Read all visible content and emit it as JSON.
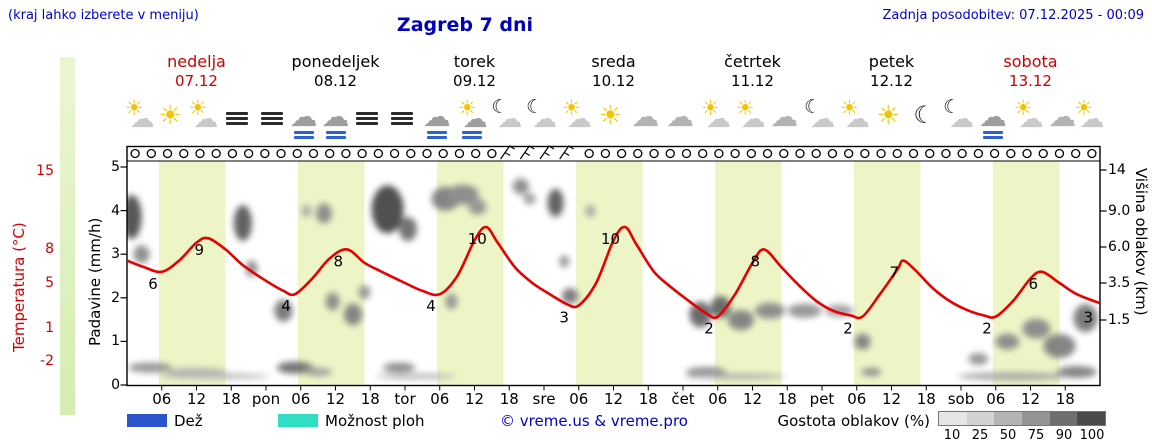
{
  "header": {
    "hint": "(kraj lahko izberete v meniju)",
    "title": "Zagreb 7 dni",
    "updated": "Zadnja posodobitev: 07.12.2025 - 00:09"
  },
  "days": [
    {
      "name": "nedelja",
      "date": "07.12",
      "red": true
    },
    {
      "name": "ponedeljek",
      "date": "08.12",
      "red": false
    },
    {
      "name": "torek",
      "date": "09.12",
      "red": false
    },
    {
      "name": "sreda",
      "date": "10.12",
      "red": false
    },
    {
      "name": "četrtek",
      "date": "11.12",
      "red": false
    },
    {
      "name": "petek",
      "date": "12.12",
      "red": false
    },
    {
      "name": "sobota",
      "date": "13.12",
      "red": true
    }
  ],
  "axes": {
    "temp_label": "Temperatura (°C)",
    "temp_ticks": [
      15,
      8,
      5,
      1,
      -2
    ],
    "precip_label": "Padavine (mm/h)",
    "precip_ticks": [
      5,
      4,
      3,
      2,
      1,
      0
    ],
    "cloud_label": "Višina oblakov (km)",
    "cloud_ticks": [
      "14",
      "9.0",
      "6.0",
      "3.5",
      "1.5"
    ],
    "x_hour_labels": [
      "06",
      "12",
      "18"
    ],
    "x_day_abbrevs": [
      "pon",
      "tor",
      "sre",
      "čet",
      "pet",
      "sob"
    ]
  },
  "legend": {
    "rain_label": "Dež",
    "showers_label": "Možnost ploh",
    "credit": "© vreme.us & vreme.pro",
    "cloud_density_label": "Gostota oblakov (%)",
    "cloud_scale_values": [
      "10",
      "25",
      "50",
      "75",
      "90",
      "100"
    ],
    "cloud_scale_grays": [
      "#e6e6e6",
      "#d2d2d2",
      "#b4b4b4",
      "#949494",
      "#6f6f6f",
      "#4a4a4a"
    ]
  },
  "colors": {
    "day_band": "#edf5c6",
    "curve": "#e60000",
    "rain_legend": "#2c55cc",
    "showers_legend": "#30dfc3",
    "temp_axis": "#d40000",
    "blue_text": "#0000cc"
  },
  "chart_data": {
    "type": "line",
    "location": "Zagreb",
    "x_unit": "ure od 07.12 00:00",
    "x_range_hours": [
      0,
      168
    ],
    "temp_axis_range_c": [
      -2,
      15
    ],
    "precip_axis_range_mmh": [
      0,
      5
    ],
    "cloud_height_axis_km": [
      0,
      1.5,
      3.5,
      6.0,
      9.0,
      14
    ],
    "daylight_hours": {
      "from": 5.5,
      "to": 17
    },
    "series": [
      {
        "name": "Temperatura (°C)",
        "points": [
          [
            0,
            7
          ],
          [
            3,
            6.4
          ],
          [
            6,
            6
          ],
          [
            9,
            7
          ],
          [
            12,
            8.6
          ],
          [
            14,
            9
          ],
          [
            17,
            8
          ],
          [
            20,
            6.6
          ],
          [
            24,
            5.2
          ],
          [
            27,
            4.3
          ],
          [
            29,
            4
          ],
          [
            32,
            5.4
          ],
          [
            35,
            7.2
          ],
          [
            38,
            8
          ],
          [
            41,
            6.8
          ],
          [
            44,
            6
          ],
          [
            48,
            5
          ],
          [
            51,
            4.3
          ],
          [
            54,
            4
          ],
          [
            57,
            5.6
          ],
          [
            60,
            8.8
          ],
          [
            62,
            10
          ],
          [
            64,
            8.6
          ],
          [
            67,
            6.4
          ],
          [
            70,
            5
          ],
          [
            73,
            4
          ],
          [
            76,
            3.1
          ],
          [
            78,
            3
          ],
          [
            81,
            5
          ],
          [
            84,
            8.8
          ],
          [
            86,
            10
          ],
          [
            88,
            8.4
          ],
          [
            91,
            6
          ],
          [
            94,
            4.6
          ],
          [
            97,
            3.4
          ],
          [
            100,
            2.3
          ],
          [
            102,
            2
          ],
          [
            105,
            4
          ],
          [
            108,
            6.8
          ],
          [
            110,
            8
          ],
          [
            113,
            6.4
          ],
          [
            116,
            4.8
          ],
          [
            119,
            3.4
          ],
          [
            122,
            2.5
          ],
          [
            125,
            2.1
          ],
          [
            127,
            2
          ],
          [
            130,
            4
          ],
          [
            133,
            6.2
          ],
          [
            134,
            7
          ],
          [
            136,
            6.2
          ],
          [
            139,
            4.6
          ],
          [
            142,
            3.4
          ],
          [
            145,
            2.6
          ],
          [
            148,
            2.1
          ],
          [
            150,
            2
          ],
          [
            153,
            3.4
          ],
          [
            156,
            5.4
          ],
          [
            158,
            6
          ],
          [
            161,
            5
          ],
          [
            164,
            4
          ],
          [
            168,
            3.2
          ]
        ]
      }
    ],
    "point_labels": [
      [
        5,
        6
      ],
      [
        13,
        9
      ],
      [
        28,
        4
      ],
      [
        37,
        8
      ],
      [
        53,
        4
      ],
      [
        61,
        10
      ],
      [
        76,
        3
      ],
      [
        84,
        10
      ],
      [
        101,
        2
      ],
      [
        109,
        8
      ],
      [
        125,
        2
      ],
      [
        133,
        7
      ],
      [
        149,
        2
      ],
      [
        157,
        6
      ],
      [
        166.5,
        3
      ]
    ],
    "weather_icons": [
      [
        2,
        "partly"
      ],
      [
        7.5,
        "sun"
      ],
      [
        13,
        "partly"
      ],
      [
        19,
        "fog"
      ],
      [
        25,
        "fog"
      ],
      [
        30.5,
        "rain"
      ],
      [
        36,
        "rain"
      ],
      [
        41.5,
        "fog"
      ],
      [
        47.5,
        "fog"
      ],
      [
        53.5,
        "rain"
      ],
      [
        59.5,
        "rain-sun"
      ],
      [
        65.5,
        "moon-cloud"
      ],
      [
        71.5,
        "moon-cloud"
      ],
      [
        77.5,
        "partly"
      ],
      [
        83.5,
        "sun"
      ],
      [
        89.5,
        "cloud"
      ],
      [
        95.5,
        "cloud"
      ],
      [
        101.5,
        "partly"
      ],
      [
        107.5,
        "partly"
      ],
      [
        113.5,
        "cloud"
      ],
      [
        119.5,
        "moon-cloud"
      ],
      [
        125.5,
        "partly"
      ],
      [
        131.5,
        "sun"
      ],
      [
        137.5,
        "moon"
      ],
      [
        143.5,
        "moon-cloud"
      ],
      [
        149.5,
        "rain"
      ],
      [
        155.5,
        "partly"
      ],
      [
        161.5,
        "cloud"
      ],
      [
        166,
        "partly"
      ]
    ],
    "wind_symbol_hours": [
      65.2,
      68.6,
      72,
      75.4
    ],
    "clouds": [
      [
        0.8,
        8.5,
        10,
        22,
        0.8
      ],
      [
        2.5,
        5.5,
        8,
        9,
        0.5
      ],
      [
        4,
        0.4,
        22,
        5,
        0.45
      ],
      [
        12,
        0.3,
        30,
        4,
        0.3
      ],
      [
        20,
        8,
        9,
        18,
        0.75
      ],
      [
        21.5,
        4.5,
        6,
        8,
        0.5
      ],
      [
        27,
        2,
        9,
        11,
        0.6
      ],
      [
        29,
        0.4,
        18,
        6,
        0.65
      ],
      [
        31,
        9,
        5,
        6,
        0.35
      ],
      [
        33,
        0.3,
        14,
        4,
        0.4
      ],
      [
        34,
        8.8,
        8,
        10,
        0.5
      ],
      [
        35.5,
        2.5,
        7,
        9,
        0.5
      ],
      [
        39,
        1.8,
        9,
        11,
        0.55
      ],
      [
        41,
        3,
        6,
        7,
        0.45
      ],
      [
        45,
        9.2,
        16,
        24,
        0.85
      ],
      [
        48.5,
        7.5,
        9,
        12,
        0.65
      ],
      [
        47,
        0.4,
        16,
        5,
        0.5
      ],
      [
        55,
        10.5,
        14,
        12,
        0.55
      ],
      [
        58,
        11,
        16,
        10,
        0.5
      ],
      [
        60.5,
        9.5,
        9,
        8,
        0.45
      ],
      [
        56,
        2.5,
        6,
        8,
        0.45
      ],
      [
        68,
        12,
        8,
        8,
        0.5
      ],
      [
        69.5,
        10.5,
        6,
        6,
        0.4
      ],
      [
        74,
        10,
        8,
        14,
        0.75
      ],
      [
        75.5,
        5,
        5,
        6,
        0.45
      ],
      [
        76.5,
        2.8,
        8,
        8,
        0.6
      ],
      [
        80,
        9,
        5,
        6,
        0.35
      ],
      [
        99,
        1.8,
        11,
        13,
        0.7
      ],
      [
        102.5,
        2.2,
        10,
        11,
        0.7
      ],
      [
        106,
        1.5,
        13,
        10,
        0.55
      ],
      [
        100,
        0.3,
        20,
        5,
        0.5
      ],
      [
        111,
        2,
        15,
        8,
        0.5
      ],
      [
        117,
        2,
        17,
        7,
        0.45
      ],
      [
        123,
        2,
        14,
        6,
        0.4
      ],
      [
        127,
        1,
        8,
        8,
        0.55
      ],
      [
        128.5,
        0.3,
        10,
        4,
        0.5
      ],
      [
        147,
        0.6,
        10,
        6,
        0.45
      ],
      [
        152,
        1,
        12,
        8,
        0.5
      ],
      [
        157,
        1.3,
        14,
        10,
        0.5
      ],
      [
        161,
        0.9,
        16,
        12,
        0.55
      ],
      [
        165.5,
        1.6,
        12,
        14,
        0.6
      ],
      [
        164,
        0.3,
        20,
        6,
        0.55
      ],
      [
        15,
        0.2,
        55,
        3,
        0.25
      ],
      [
        50,
        0.2,
        40,
        3,
        0.25
      ],
      [
        105,
        0.2,
        50,
        3,
        0.3
      ],
      [
        153,
        0.2,
        55,
        4,
        0.35
      ]
    ]
  }
}
